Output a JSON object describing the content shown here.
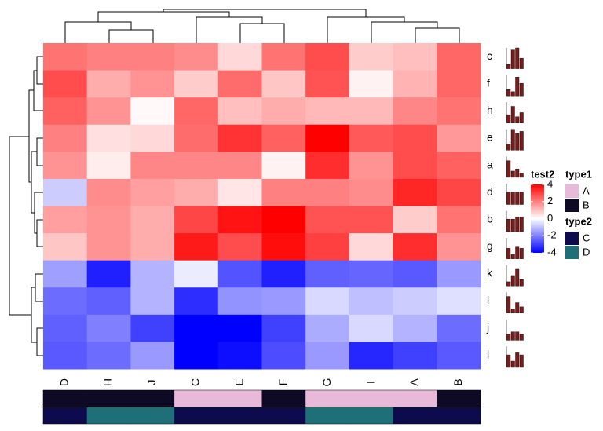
{
  "chart_data": {
    "type": "heatmap",
    "columns": [
      "D",
      "H",
      "J",
      "C",
      "E",
      "F",
      "G",
      "I",
      "A",
      "B"
    ],
    "rows": [
      "c",
      "f",
      "h",
      "e",
      "a",
      "d",
      "b",
      "g",
      "k",
      "l",
      "j",
      "i"
    ],
    "values": [
      [
        2.2,
        2.0,
        2.0,
        1.8,
        0.6,
        2.2,
        2.8,
        0.8,
        1.0,
        2.4
      ],
      [
        2.8,
        1.3,
        1.7,
        0.8,
        2.3,
        0.9,
        2.7,
        0.2,
        1.2,
        2.4
      ],
      [
        2.5,
        1.7,
        0.1,
        2.4,
        1.0,
        1.3,
        1.1,
        1.1,
        1.9,
        2.2
      ],
      [
        2.0,
        0.5,
        0.6,
        2.3,
        3.2,
        2.5,
        4.2,
        2.6,
        2.8,
        1.6
      ],
      [
        1.7,
        0.3,
        1.9,
        1.9,
        1.9,
        0.2,
        3.3,
        1.7,
        2.8,
        2.5
      ],
      [
        -0.8,
        1.8,
        1.5,
        1.3,
        0.4,
        2.0,
        2.0,
        1.8,
        3.4,
        2.9
      ],
      [
        1.5,
        1.7,
        1.3,
        2.9,
        3.7,
        4.0,
        2.7,
        2.7,
        0.8,
        2.2
      ],
      [
        0.9,
        1.7,
        1.3,
        3.6,
        2.8,
        3.8,
        3.0,
        0.6,
        3.3,
        1.7
      ],
      [
        -1.5,
        -3.5,
        -1.2,
        -0.3,
        -2.7,
        -3.5,
        -2.5,
        -2.4,
        -2.6,
        -1.6
      ],
      [
        -2.3,
        -2.5,
        -1.2,
        -3.3,
        -1.7,
        -1.6,
        -0.6,
        -1.0,
        -0.8,
        -0.5
      ],
      [
        -2.5,
        -2.0,
        -3.0,
        -4.3,
        -4.5,
        -3.0,
        -1.3,
        -0.6,
        -1.2,
        -2.3
      ],
      [
        -2.6,
        -2.3,
        -1.6,
        -4.2,
        -3.8,
        -2.8,
        -1.6,
        -3.4,
        -3.0,
        -2.6
      ]
    ],
    "colorbar": {
      "title": "test2",
      "lim": [
        -4,
        4
      ],
      "ticks": [
        4,
        2,
        0,
        -2,
        -4
      ],
      "colors": [
        "#0000ff",
        "#ffffff",
        "#ff0000"
      ]
    },
    "annotations": [
      {
        "name": "type1",
        "values": [
          "B",
          "B",
          "B",
          "A",
          "A",
          "B",
          "A",
          "A",
          "A",
          "B"
        ],
        "levels": [
          {
            "label": "A",
            "color": "#e8b9d9"
          },
          {
            "label": "B",
            "color": "#0e0a26"
          }
        ]
      },
      {
        "name": "type2",
        "values": [
          "C",
          "D",
          "D",
          "C",
          "C",
          "C",
          "D",
          "D",
          "C",
          "C"
        ],
        "levels": [
          {
            "label": "C",
            "color": "#0e0a4e"
          },
          {
            "label": "D",
            "color": "#1e6f78"
          }
        ]
      }
    ],
    "row_barplot": {
      "color": "#7b1c1c",
      "ylim": [
        0,
        1
      ],
      "values": [
        [
          0.2,
          0.9,
          1.0,
          0.5
        ],
        [
          0.3,
          0.2,
          0.9,
          0.6
        ],
        [
          0.4,
          0.8,
          0.3,
          0.5
        ],
        [
          0.3,
          1.0,
          0.8,
          0.9
        ],
        [
          0.8,
          0.3,
          0.4,
          0.2
        ],
        [
          0.6,
          0.6,
          0.6,
          0.6
        ],
        [
          0.6,
          0.6,
          0.7,
          0.7
        ],
        [
          0.5,
          0.2,
          0.6,
          0.5
        ],
        [
          0.2,
          0.5,
          0.8,
          0.3
        ],
        [
          0.8,
          0.2,
          0.5,
          0.3
        ],
        [
          0.3,
          0.4,
          0.4,
          0.3
        ],
        [
          0.6,
          0.3,
          0.7,
          0.6
        ]
      ]
    }
  }
}
